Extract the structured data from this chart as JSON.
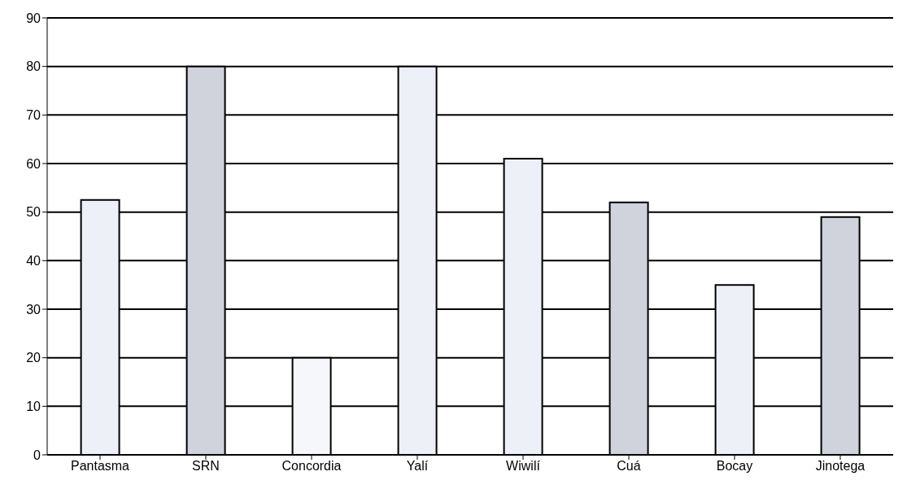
{
  "chart_data": {
    "type": "bar",
    "categories": [
      "Pantasma",
      "SRN",
      "Concordia",
      "Yalí",
      "Wiwilí",
      "Cuá",
      "Bocay",
      "Jinotega"
    ],
    "values": [
      52.5,
      80,
      20,
      80,
      61,
      52,
      35,
      49
    ],
    "colors": [
      "#eef0f8",
      "#d0d2dc",
      "#f6f7fb",
      "#eef0f8",
      "#eef0f8",
      "#d0d2dc",
      "#eef0f8",
      "#d0d2dc"
    ],
    "ylim": [
      0,
      90
    ],
    "yticks": [
      0,
      10,
      20,
      30,
      40,
      50,
      60,
      70,
      80,
      90
    ],
    "grid": "y"
  }
}
